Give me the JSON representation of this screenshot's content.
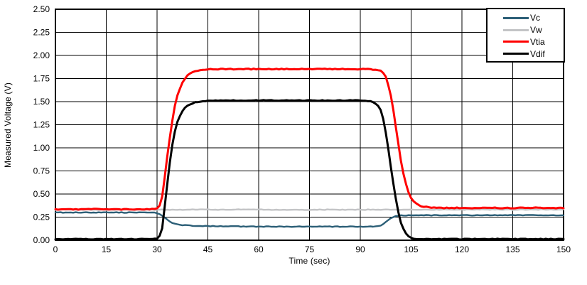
{
  "figure": {
    "background": "#FFFFFF",
    "grid_color": "#000000",
    "border_color": "#000000"
  },
  "chart_data": {
    "type": "line",
    "title": "",
    "xlabel": "Time (sec)",
    "ylabel": "Measured Voltage (V)",
    "xlim": [
      0,
      150
    ],
    "ylim": [
      0,
      2.5
    ],
    "grid": true,
    "legend_position": "top-right",
    "x_ticks": [
      {
        "v": 0,
        "label": "0"
      },
      {
        "v": 15,
        "label": "15"
      },
      {
        "v": 30,
        "label": "30"
      },
      {
        "v": 45,
        "label": "45"
      },
      {
        "v": 60,
        "label": "60"
      },
      {
        "v": 75,
        "label": "75"
      },
      {
        "v": 90,
        "label": "90"
      },
      {
        "v": 105,
        "label": "105"
      },
      {
        "v": 120,
        "label": "120"
      },
      {
        "v": 135,
        "label": "135"
      },
      {
        "v": 150,
        "label": "150"
      }
    ],
    "y_ticks": [
      {
        "v": 0.0,
        "label": "0.00"
      },
      {
        "v": 0.25,
        "label": "0.25"
      },
      {
        "v": 0.5,
        "label": "0.50"
      },
      {
        "v": 0.75,
        "label": "0.75"
      },
      {
        "v": 1.0,
        "label": "1.00"
      },
      {
        "v": 1.25,
        "label": "1.25"
      },
      {
        "v": 1.5,
        "label": "1.50"
      },
      {
        "v": 1.75,
        "label": "1.75"
      },
      {
        "v": 2.0,
        "label": "2.00"
      },
      {
        "v": 2.25,
        "label": "2.25"
      },
      {
        "v": 2.5,
        "label": "2.50"
      }
    ],
    "series": [
      {
        "name": "Vc",
        "color": "#2C5F77",
        "width": 2.4,
        "noise": 0.0035,
        "points": [
          [
            0,
            0.3
          ],
          [
            5,
            0.3
          ],
          [
            10,
            0.3
          ],
          [
            15,
            0.3
          ],
          [
            20,
            0.3
          ],
          [
            25,
            0.3
          ],
          [
            28,
            0.3
          ],
          [
            29,
            0.298
          ],
          [
            30,
            0.293
          ],
          [
            31,
            0.28
          ],
          [
            32,
            0.255
          ],
          [
            33,
            0.225
          ],
          [
            34,
            0.198
          ],
          [
            35,
            0.18
          ],
          [
            36,
            0.17
          ],
          [
            38,
            0.162
          ],
          [
            40,
            0.158
          ],
          [
            45,
            0.153
          ],
          [
            50,
            0.15
          ],
          [
            55,
            0.149
          ],
          [
            60,
            0.148
          ],
          [
            70,
            0.147
          ],
          [
            80,
            0.147
          ],
          [
            90,
            0.147
          ],
          [
            93,
            0.148
          ],
          [
            95,
            0.152
          ],
          [
            96,
            0.16
          ],
          [
            97,
            0.18
          ],
          [
            98,
            0.21
          ],
          [
            99,
            0.24
          ],
          [
            100,
            0.258
          ],
          [
            101,
            0.266
          ],
          [
            102,
            0.269
          ],
          [
            104,
            0.27
          ],
          [
            110,
            0.27
          ],
          [
            120,
            0.27
          ],
          [
            130,
            0.27
          ],
          [
            140,
            0.271
          ],
          [
            150,
            0.271
          ]
        ]
      },
      {
        "name": "Vw",
        "color": "#C3C4C6",
        "width": 2.4,
        "noise": 0.0035,
        "points": [
          [
            0,
            0.33
          ],
          [
            15,
            0.33
          ],
          [
            30,
            0.33
          ],
          [
            45,
            0.331
          ],
          [
            60,
            0.331
          ],
          [
            75,
            0.33
          ],
          [
            90,
            0.33
          ],
          [
            105,
            0.331
          ],
          [
            120,
            0.331
          ],
          [
            135,
            0.331
          ],
          [
            150,
            0.331
          ]
        ]
      },
      {
        "name": "Vtia",
        "color": "#FF0000",
        "width": 3,
        "noise": 0.005,
        "points": [
          [
            0,
            0.335
          ],
          [
            10,
            0.335
          ],
          [
            20,
            0.335
          ],
          [
            25,
            0.336
          ],
          [
            28,
            0.336
          ],
          [
            29,
            0.338
          ],
          [
            30,
            0.345
          ],
          [
            30.5,
            0.36
          ],
          [
            31,
            0.4
          ],
          [
            31.5,
            0.47
          ],
          [
            32,
            0.6
          ],
          [
            33,
            0.9
          ],
          [
            34,
            1.18
          ],
          [
            35,
            1.41
          ],
          [
            36,
            1.57
          ],
          [
            37,
            1.67
          ],
          [
            38,
            1.74
          ],
          [
            39,
            1.785
          ],
          [
            40,
            1.81
          ],
          [
            41,
            1.825
          ],
          [
            42,
            1.835
          ],
          [
            44,
            1.845
          ],
          [
            46,
            1.85
          ],
          [
            50,
            1.852
          ],
          [
            55,
            1.853
          ],
          [
            60,
            1.852
          ],
          [
            70,
            1.852
          ],
          [
            80,
            1.853
          ],
          [
            90,
            1.852
          ],
          [
            93,
            1.85
          ],
          [
            95,
            1.845
          ],
          [
            96,
            1.835
          ],
          [
            97,
            1.8
          ],
          [
            97.5,
            1.77
          ],
          [
            98,
            1.72
          ],
          [
            99,
            1.57
          ],
          [
            100,
            1.35
          ],
          [
            101,
            1.1
          ],
          [
            102,
            0.86
          ],
          [
            103,
            0.67
          ],
          [
            104,
            0.54
          ],
          [
            105,
            0.455
          ],
          [
            106,
            0.41
          ],
          [
            107,
            0.385
          ],
          [
            108,
            0.37
          ],
          [
            109,
            0.362
          ],
          [
            110,
            0.357
          ],
          [
            112,
            0.352
          ],
          [
            115,
            0.35
          ],
          [
            120,
            0.349
          ],
          [
            130,
            0.349
          ],
          [
            140,
            0.35
          ],
          [
            150,
            0.35
          ]
        ]
      },
      {
        "name": "Vdif",
        "color": "#000000",
        "width": 3,
        "noise": 0.004,
        "points": [
          [
            0,
            0.012
          ],
          [
            10,
            0.012
          ],
          [
            20,
            0.012
          ],
          [
            28,
            0.012
          ],
          [
            29,
            0.012
          ],
          [
            30,
            0.015
          ],
          [
            30.5,
            0.03
          ],
          [
            31,
            0.06
          ],
          [
            31.5,
            0.13
          ],
          [
            32,
            0.28
          ],
          [
            33,
            0.6
          ],
          [
            34,
            0.92
          ],
          [
            35,
            1.14
          ],
          [
            36,
            1.28
          ],
          [
            37,
            1.37
          ],
          [
            38,
            1.425
          ],
          [
            39,
            1.455
          ],
          [
            40,
            1.475
          ],
          [
            41,
            1.49
          ],
          [
            42,
            1.497
          ],
          [
            44,
            1.505
          ],
          [
            46,
            1.51
          ],
          [
            50,
            1.512
          ],
          [
            60,
            1.513
          ],
          [
            70,
            1.512
          ],
          [
            80,
            1.513
          ],
          [
            90,
            1.512
          ],
          [
            92,
            1.51
          ],
          [
            93,
            1.505
          ],
          [
            94,
            1.49
          ],
          [
            95,
            1.465
          ],
          [
            96,
            1.41
          ],
          [
            97,
            1.28
          ],
          [
            98,
            1.06
          ],
          [
            99,
            0.8
          ],
          [
            100,
            0.55
          ],
          [
            101,
            0.34
          ],
          [
            102,
            0.19
          ],
          [
            103,
            0.1
          ],
          [
            104,
            0.05
          ],
          [
            105,
            0.025
          ],
          [
            106,
            0.015
          ],
          [
            107,
            0.012
          ],
          [
            110,
            0.012
          ],
          [
            120,
            0.012
          ],
          [
            130,
            0.013
          ],
          [
            140,
            0.012
          ],
          [
            150,
            0.013
          ]
        ]
      }
    ]
  }
}
